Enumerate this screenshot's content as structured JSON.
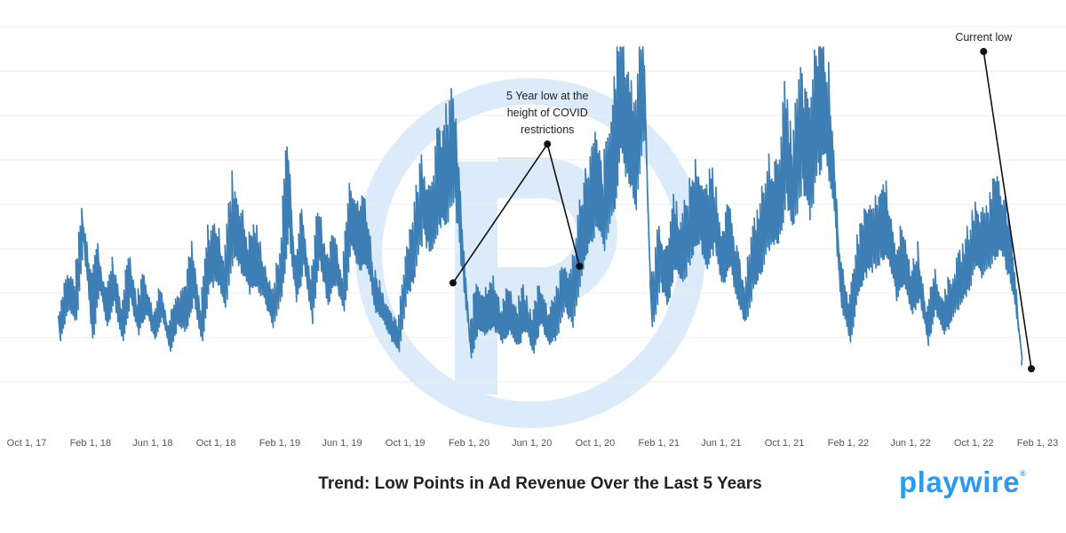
{
  "chart_data": {
    "type": "line",
    "title": "Trend: Low Points in Ad Revenue Over the Last 5 Years",
    "xlabel": "",
    "ylabel": "",
    "x_axis": {
      "kind": "date",
      "range": [
        "2017-10-01",
        "2023-02-01"
      ],
      "tick_labels": [
        "Oct 1, 17",
        "Feb 1, 18",
        "Jun 1, 18",
        "Oct 1, 18",
        "Feb 1, 19",
        "Jun 1, 19",
        "Oct 1, 19",
        "Feb 1, 20",
        "Jun 1, 20",
        "Oct 1, 20",
        "Feb 1, 21",
        "Jun 1, 21",
        "Oct 1, 21",
        "Feb 1, 22",
        "Jun 1, 22",
        "Oct 1, 22",
        "Feb 1, 23"
      ]
    },
    "y_axis": {
      "tick_labels_shown": false,
      "range": [
        0,
        100
      ]
    },
    "grid": {
      "horizontal": true,
      "vertical": false
    },
    "series_color": "#3d7fb4",
    "series": [
      {
        "x": [
          "2017-12-01",
          "2017-12-15",
          "2018-01-01",
          "2018-01-15",
          "2018-02-01",
          "2018-02-15",
          "2018-03-01",
          "2018-03-15",
          "2018-04-01",
          "2018-04-15",
          "2018-05-01",
          "2018-05-15",
          "2018-06-01",
          "2018-06-15",
          "2018-07-01",
          "2018-07-15",
          "2018-08-01",
          "2018-08-15",
          "2018-09-01",
          "2018-09-15",
          "2018-10-01",
          "2018-10-15",
          "2018-11-01",
          "2018-11-15",
          "2018-12-01",
          "2018-12-15",
          "2019-01-01",
          "2019-01-15",
          "2019-02-01",
          "2019-02-15",
          "2019-03-01",
          "2019-03-15",
          "2019-04-01",
          "2019-04-15",
          "2019-05-01",
          "2019-05-15",
          "2019-06-01",
          "2019-06-15",
          "2019-07-01",
          "2019-07-15",
          "2019-08-01",
          "2019-08-15",
          "2019-09-01",
          "2019-09-15",
          "2019-10-01",
          "2019-10-15",
          "2019-11-01",
          "2019-11-15",
          "2019-12-01",
          "2019-12-15",
          "2020-01-01",
          "2020-01-15",
          "2020-02-01",
          "2020-02-15",
          "2020-03-01",
          "2020-03-15",
          "2020-04-01",
          "2020-04-15",
          "2020-05-01",
          "2020-05-15",
          "2020-06-01",
          "2020-06-15",
          "2020-07-01",
          "2020-07-15",
          "2020-08-01",
          "2020-08-15",
          "2020-09-01",
          "2020-09-15",
          "2020-10-01",
          "2020-10-15",
          "2020-11-01",
          "2020-11-15",
          "2020-12-01",
          "2020-12-15",
          "2021-01-01",
          "2021-01-15",
          "2021-02-01",
          "2021-02-15",
          "2021-03-01",
          "2021-03-15",
          "2021-04-01",
          "2021-04-15",
          "2021-05-01",
          "2021-05-15",
          "2021-06-01",
          "2021-06-15",
          "2021-07-01",
          "2021-07-15",
          "2021-08-01",
          "2021-08-15",
          "2021-09-01",
          "2021-09-15",
          "2021-10-01",
          "2021-10-15",
          "2021-11-01",
          "2021-11-15",
          "2021-12-01",
          "2021-12-15",
          "2022-01-01",
          "2022-01-15",
          "2022-02-01",
          "2022-02-15",
          "2022-03-01",
          "2022-03-15",
          "2022-04-01",
          "2022-04-15",
          "2022-05-01",
          "2022-05-15",
          "2022-06-01",
          "2022-06-15",
          "2022-07-01",
          "2022-07-15",
          "2022-08-01",
          "2022-08-15",
          "2022-09-01",
          "2022-09-15",
          "2022-10-01",
          "2022-10-15",
          "2022-11-01",
          "2022-11-15",
          "2022-12-01",
          "2022-12-15",
          "2023-01-01"
        ],
        "values": [
          15,
          25,
          22,
          45,
          20,
          32,
          20,
          28,
          15,
          30,
          18,
          25,
          15,
          22,
          12,
          20,
          20,
          30,
          15,
          35,
          35,
          28,
          45,
          40,
          32,
          35,
          28,
          20,
          30,
          55,
          28,
          40,
          22,
          42,
          28,
          35,
          25,
          48,
          40,
          42,
          25,
          22,
          15,
          12,
          30,
          38,
          52,
          45,
          55,
          58,
          65,
          40,
          10,
          20,
          18,
          22,
          15,
          20,
          14,
          20,
          12,
          22,
          14,
          18,
          26,
          22,
          40,
          48,
          55,
          48,
          60,
          80,
          72,
          62,
          88,
          20,
          35,
          28,
          42,
          35,
          45,
          50,
          42,
          48,
          35,
          40,
          28,
          22,
          35,
          40,
          50,
          48,
          65,
          55,
          70,
          60,
          75,
          80,
          60,
          28,
          15,
          30,
          38,
          40,
          42,
          45,
          30,
          35,
          25,
          30,
          15,
          25,
          18,
          22,
          28,
          32,
          40,
          38,
          42,
          48,
          40,
          28,
          5
        ],
        "amplitude": [
          6,
          8,
          10,
          8,
          18,
          10,
          8,
          10,
          8,
          12,
          8,
          10,
          6,
          8,
          6,
          8,
          10,
          12,
          8,
          12,
          14,
          12,
          18,
          16,
          12,
          14,
          10,
          8,
          10,
          25,
          10,
          14,
          10,
          14,
          10,
          12,
          10,
          18,
          14,
          16,
          10,
          8,
          6,
          6,
          10,
          14,
          18,
          16,
          20,
          22,
          26,
          18,
          6,
          12,
          10,
          12,
          8,
          10,
          8,
          10,
          8,
          10,
          8,
          10,
          10,
          12,
          16,
          18,
          20,
          18,
          22,
          30,
          28,
          24,
          30,
          10,
          14,
          12,
          16,
          14,
          16,
          18,
          16,
          18,
          14,
          14,
          12,
          10,
          12,
          16,
          18,
          18,
          24,
          20,
          26,
          24,
          28,
          30,
          24,
          12,
          8,
          12,
          14,
          14,
          14,
          16,
          12,
          12,
          10,
          12,
          8,
          10,
          8,
          10,
          10,
          12,
          14,
          14,
          16,
          18,
          16,
          12,
          4
        ]
      }
    ],
    "annotations": [
      {
        "text_lines": [
          "5 Year low at the",
          "height of COVID",
          "restrictions"
        ],
        "point": [
          "2020-07-01",
          72
        ],
        "targets": [
          [
            "2020-01-01",
            30
          ],
          [
            "2020-09-01",
            35
          ]
        ]
      },
      {
        "text_lines": [
          "Current low"
        ],
        "point": [
          "2022-10-20",
          100
        ],
        "targets": [
          [
            "2023-01-20",
            4
          ]
        ]
      }
    ],
    "watermark": {
      "color": "#dcebfa"
    }
  },
  "brand": {
    "name": "playwire",
    "mark": "®",
    "color": "#2b9af3"
  }
}
